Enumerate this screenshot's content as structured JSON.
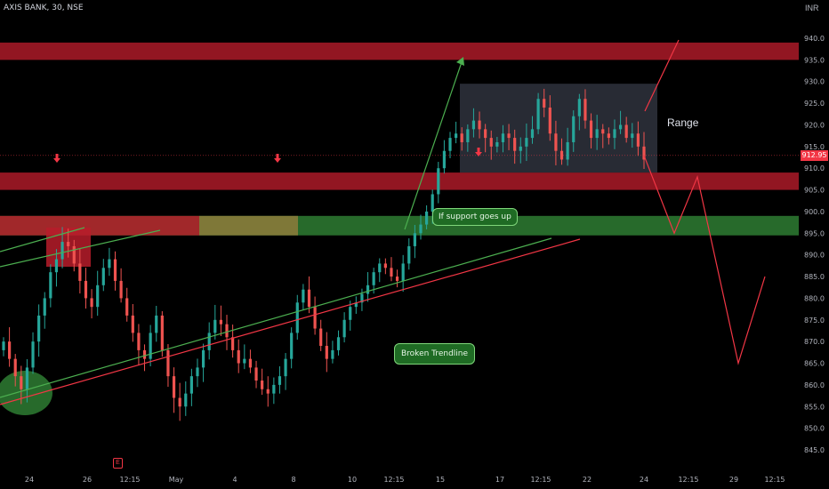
{
  "header": {
    "symbol_line": "AXIS BANK, 30, NSE",
    "currency": "INR"
  },
  "last_price_label": "912.95",
  "annotations": {
    "support": "If support goes up",
    "trendline": "Broken Trendline",
    "range": "Range",
    "earnings_marker": "E"
  },
  "colors": {
    "up_candle": "#26a69a",
    "down_candle": "#ef5350",
    "resistance_zone": "#b71c2a",
    "support_zone": "#2e7d32",
    "green_line": "#4caf50",
    "red_line": "#f23645",
    "range_box": "#363a45"
  },
  "chart_data": {
    "type": "candlestick",
    "title": "AXIS BANK, 30, NSE",
    "y_axis": {
      "unit": "INR",
      "ylim": [
        840,
        947
      ],
      "ticks": [
        845,
        850,
        855,
        860,
        865,
        870,
        875,
        880,
        885,
        890,
        895,
        900,
        905,
        910,
        915,
        920,
        925,
        930,
        935,
        940
      ]
    },
    "x_axis": {
      "ticks": [
        "24",
        "26",
        "12:15",
        "May",
        "4",
        "8",
        "10",
        "12:15",
        "15",
        "17",
        "12:15",
        "22",
        "24",
        "12:15",
        "29",
        "12:15"
      ]
    },
    "last_price": 912.95,
    "zones": [
      {
        "kind": "resistance",
        "low": 935,
        "high": 939
      },
      {
        "kind": "resistance",
        "low": 905,
        "high": 909
      },
      {
        "kind": "support",
        "low": 894.5,
        "high": 899
      }
    ],
    "range_box": {
      "low": 909,
      "high": 929.5
    },
    "projection_path_prices": [
      912.95,
      905,
      895,
      908,
      865,
      885
    ],
    "close_series": [
      870,
      866,
      862,
      859,
      864,
      870,
      876,
      880,
      886,
      889,
      893,
      892,
      888,
      884,
      880,
      878,
      883,
      887,
      889,
      884,
      880,
      876,
      872,
      868,
      866,
      872,
      876,
      868,
      862,
      857,
      855,
      858,
      862,
      864,
      868,
      872,
      875,
      874,
      871,
      868,
      865,
      866,
      864,
      861,
      859,
      858,
      860,
      862,
      866,
      872,
      879,
      882,
      878,
      873,
      869,
      866,
      868,
      871,
      875,
      878,
      879,
      881,
      883,
      886,
      888,
      887,
      885,
      884,
      888,
      892,
      895,
      897,
      900,
      904,
      910,
      914,
      917,
      918,
      916,
      919,
      921,
      919,
      917,
      915,
      916,
      918,
      917,
      914,
      915,
      917,
      919,
      926,
      924,
      918,
      914,
      912,
      916,
      922,
      926,
      921,
      917,
      919,
      918,
      917,
      919,
      920,
      917,
      918,
      915,
      912
    ]
  }
}
